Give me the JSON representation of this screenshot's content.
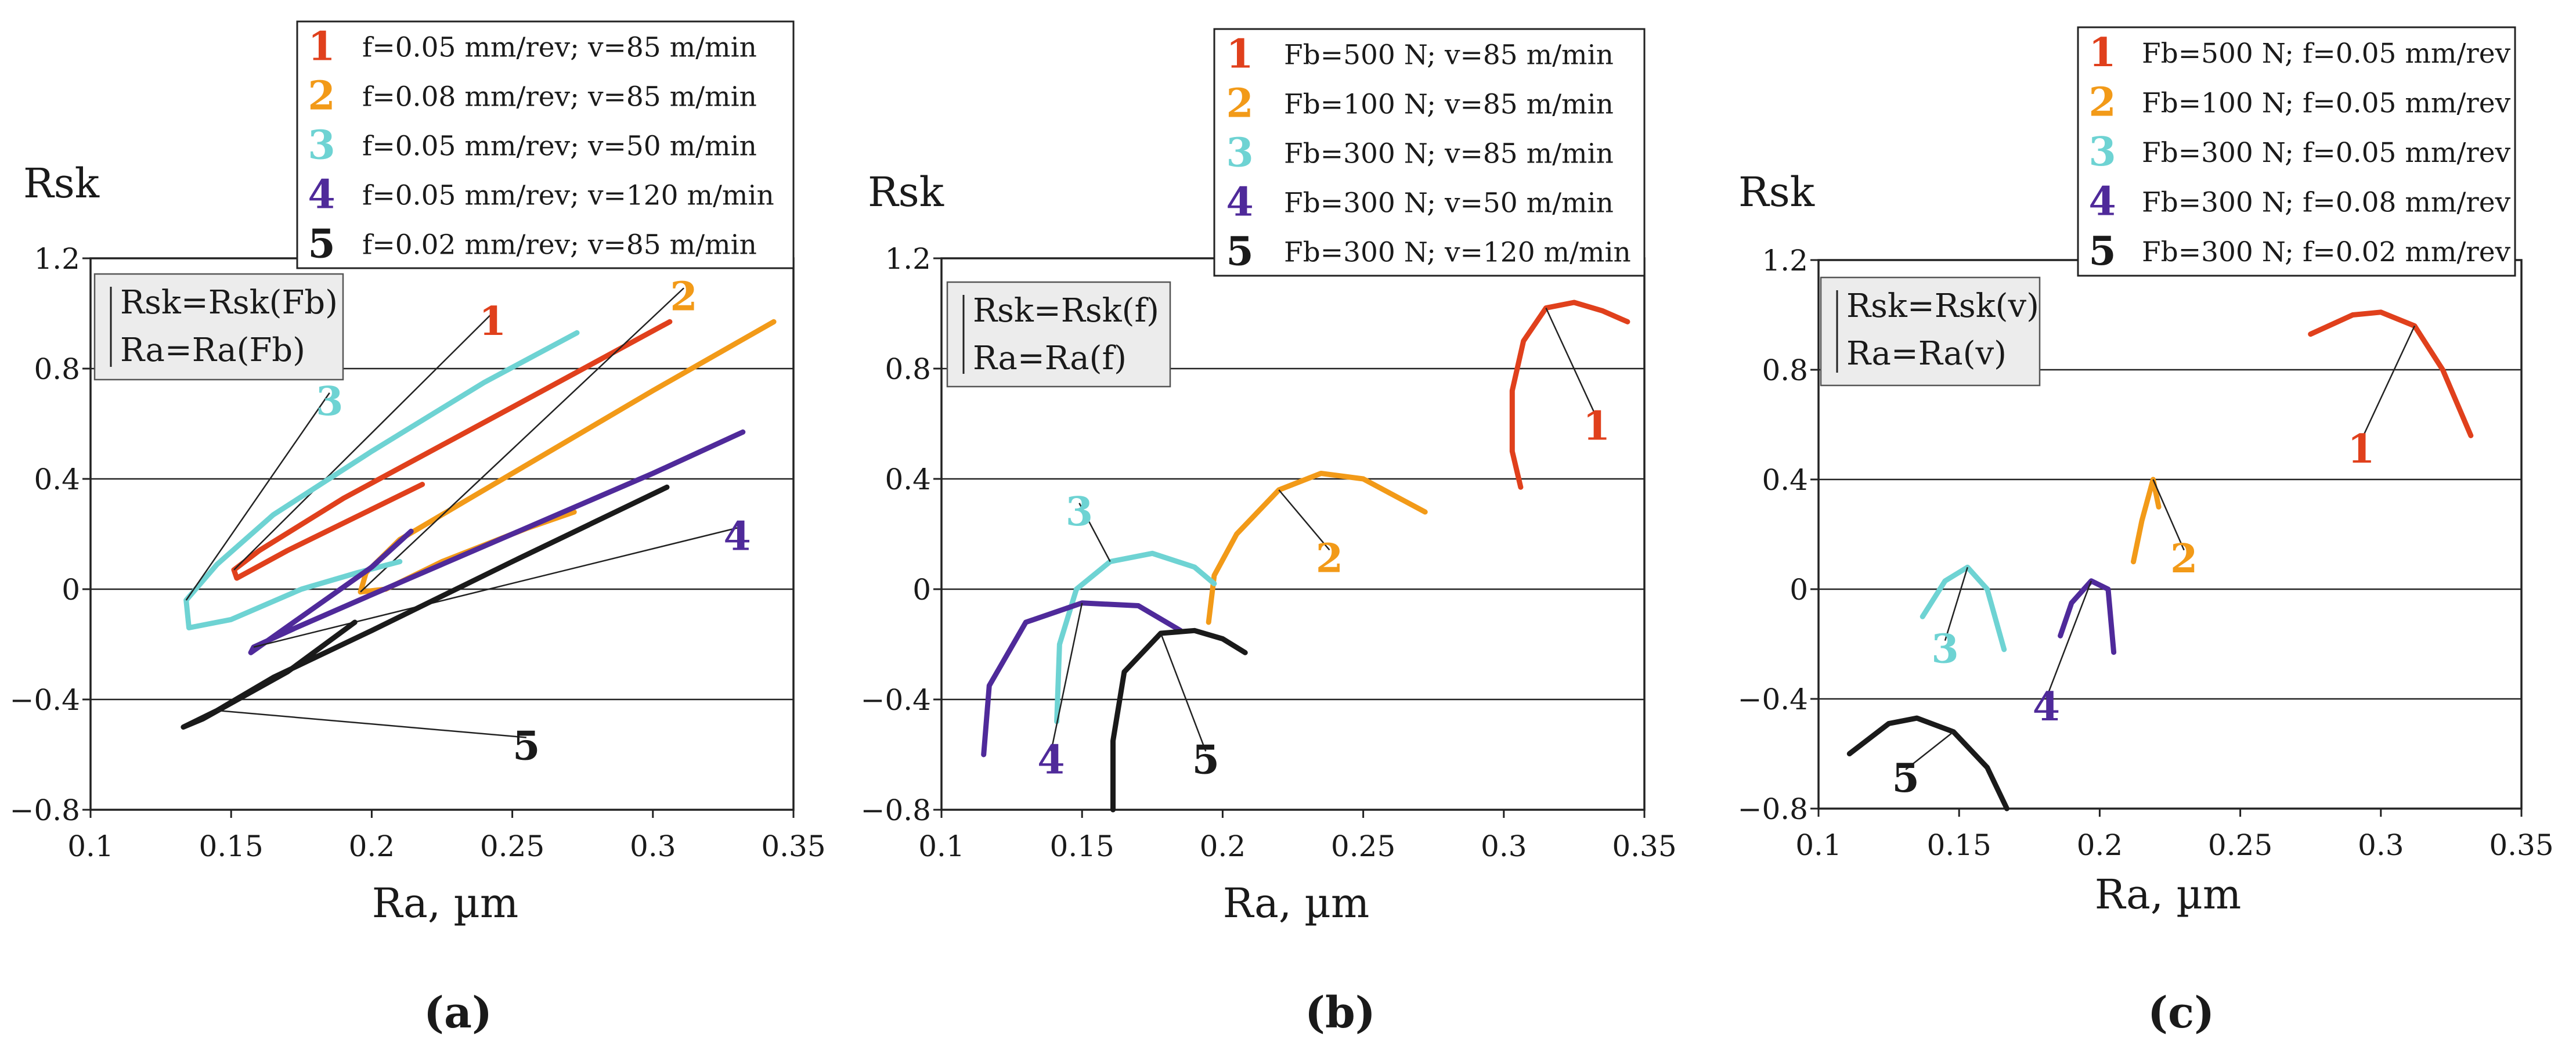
{
  "figure": {
    "panel_labels": [
      "(a)",
      "(b)",
      "(c)"
    ]
  },
  "colors": {
    "s1": "#e0401c",
    "s2": "#f29a18",
    "s3": "#6ed3d3",
    "s4": "#4f2a9a",
    "s5": "#1a1a1a",
    "box_fill": "#ececec",
    "grid": "#222222"
  },
  "chart_data": [
    {
      "type": "line",
      "panel": "(a)",
      "ylabel": "Rsk",
      "xlabel": "Ra, µm",
      "xlim": [
        0.1,
        0.35
      ],
      "ylim": [
        -0.8,
        1.2
      ],
      "xticks": [
        "0.1",
        "0.15",
        "0.2",
        "0.25",
        "0.3",
        "0.35"
      ],
      "yticks": [
        "1.2",
        "0.8",
        "0.4",
        "0",
        "−0.4",
        "−0.8"
      ],
      "note": [
        "Rsk=Rsk(Fb)",
        "Ra=Ra(Fb)"
      ],
      "legend": [
        {
          "num": "1",
          "label": "f=0.05 mm/rev; v=85 m/min"
        },
        {
          "num": "2",
          "label": "f=0.08 mm/rev; v=85 m/min"
        },
        {
          "num": "3",
          "label": "f=0.05 mm/rev; v=50 m/min"
        },
        {
          "num": "4",
          "label": "f=0.05 mm/rev; v=120 m/min"
        },
        {
          "num": "5",
          "label": "f=0.02 mm/rev; v=85 m/min"
        }
      ],
      "series": [
        {
          "name": "1",
          "color_key": "s1",
          "tag": [
            0.243,
            0.96
          ],
          "points": [
            [
              0.306,
              0.97
            ],
            [
              0.25,
              0.66
            ],
            [
              0.19,
              0.33
            ],
            [
              0.16,
              0.14
            ],
            [
              0.151,
              0.07
            ],
            [
              0.152,
              0.04
            ],
            [
              0.17,
              0.14
            ],
            [
              0.2,
              0.29
            ],
            [
              0.218,
              0.38
            ]
          ]
        },
        {
          "name": "2",
          "color_key": "s2",
          "tag": [
            0.311,
            1.05
          ],
          "points": [
            [
              0.343,
              0.97
            ],
            [
              0.3,
              0.72
            ],
            [
              0.25,
              0.42
            ],
            [
              0.21,
              0.18
            ],
            [
              0.198,
              0.06
            ],
            [
              0.196,
              -0.01
            ],
            [
              0.205,
              0.0
            ],
            [
              0.225,
              0.1
            ],
            [
              0.255,
              0.22
            ],
            [
              0.272,
              0.28
            ]
          ]
        },
        {
          "name": "3",
          "color_key": "s3",
          "tag": [
            0.185,
            0.67
          ],
          "points": [
            [
              0.273,
              0.93
            ],
            [
              0.24,
              0.75
            ],
            [
              0.2,
              0.5
            ],
            [
              0.165,
              0.27
            ],
            [
              0.145,
              0.09
            ],
            [
              0.134,
              -0.04
            ],
            [
              0.135,
              -0.14
            ],
            [
              0.15,
              -0.11
            ],
            [
              0.175,
              0.0
            ],
            [
              0.195,
              0.06
            ],
            [
              0.21,
              0.1
            ]
          ]
        },
        {
          "name": "4",
          "color_key": "s4",
          "tag": [
            0.33,
            0.18
          ],
          "points": [
            [
              0.332,
              0.57
            ],
            [
              0.3,
              0.42
            ],
            [
              0.25,
              0.2
            ],
            [
              0.2,
              -0.02
            ],
            [
              0.173,
              -0.14
            ],
            [
              0.158,
              -0.21
            ],
            [
              0.157,
              -0.23
            ],
            [
              0.175,
              -0.1
            ],
            [
              0.2,
              0.08
            ],
            [
              0.214,
              0.21
            ]
          ]
        },
        {
          "name": "5",
          "color_key": "s5",
          "tag": [
            0.255,
            -0.58
          ],
          "points": [
            [
              0.305,
              0.37
            ],
            [
              0.25,
              0.1
            ],
            [
              0.2,
              -0.15
            ],
            [
              0.165,
              -0.32
            ],
            [
              0.145,
              -0.44
            ],
            [
              0.133,
              -0.5
            ],
            [
              0.14,
              -0.47
            ],
            [
              0.17,
              -0.3
            ],
            [
              0.194,
              -0.12
            ]
          ]
        }
      ]
    },
    {
      "type": "line",
      "panel": "(b)",
      "ylabel": "Rsk",
      "xlabel": "Ra, µm",
      "xlim": [
        0.1,
        0.35
      ],
      "ylim": [
        -0.8,
        1.2
      ],
      "xticks": [
        "0.1",
        "0.15",
        "0.2",
        "0.25",
        "0.3",
        "0.35"
      ],
      "yticks": [
        "1.2",
        "0.8",
        "0.4",
        "0",
        "−0.4",
        "−0.8"
      ],
      "note": [
        "Rsk=Rsk(f)",
        "Ra=Ra(f)"
      ],
      "legend": [
        {
          "num": "1",
          "label": "Fb=500 N; v=85 m/min"
        },
        {
          "num": "2",
          "label": "Fb=100 N; v=85 m/min"
        },
        {
          "num": "3",
          "label": "Fb=300 N; v=85 m/min"
        },
        {
          "num": "4",
          "label": "Fb=300 N; v=50 m/min"
        },
        {
          "num": "5",
          "label": "Fb=300 N; v=120 m/min"
        }
      ],
      "series": [
        {
          "name": "1",
          "color_key": "s1",
          "tag": [
            0.333,
            0.58
          ],
          "points": [
            [
              0.306,
              0.37
            ],
            [
              0.303,
              0.5
            ],
            [
              0.303,
              0.72
            ],
            [
              0.307,
              0.9
            ],
            [
              0.315,
              1.02
            ],
            [
              0.325,
              1.04
            ],
            [
              0.335,
              1.01
            ],
            [
              0.344,
              0.97
            ]
          ]
        },
        {
          "name": "2",
          "color_key": "s2",
          "tag": [
            0.238,
            0.1
          ],
          "points": [
            [
              0.195,
              -0.12
            ],
            [
              0.197,
              0.05
            ],
            [
              0.205,
              0.2
            ],
            [
              0.22,
              0.36
            ],
            [
              0.235,
              0.42
            ],
            [
              0.25,
              0.4
            ],
            [
              0.272,
              0.28
            ]
          ]
        },
        {
          "name": "3",
          "color_key": "s3",
          "tag": [
            0.149,
            0.27
          ],
          "points": [
            [
              0.141,
              -0.48
            ],
            [
              0.142,
              -0.2
            ],
            [
              0.148,
              0.0
            ],
            [
              0.16,
              0.1
            ],
            [
              0.175,
              0.13
            ],
            [
              0.19,
              0.08
            ],
            [
              0.197,
              0.02
            ]
          ]
        },
        {
          "name": "4",
          "color_key": "s4",
          "tag": [
            0.139,
            -0.63
          ],
          "points": [
            [
              0.115,
              -0.6
            ],
            [
              0.117,
              -0.35
            ],
            [
              0.13,
              -0.12
            ],
            [
              0.15,
              -0.05
            ],
            [
              0.17,
              -0.06
            ],
            [
              0.185,
              -0.15
            ]
          ]
        },
        {
          "name": "5",
          "color_key": "s5",
          "tag": [
            0.194,
            -0.63
          ],
          "points": [
            [
              0.161,
              -0.8
            ],
            [
              0.161,
              -0.55
            ],
            [
              0.165,
              -0.3
            ],
            [
              0.178,
              -0.16
            ],
            [
              0.19,
              -0.15
            ],
            [
              0.2,
              -0.18
            ],
            [
              0.208,
              -0.23
            ]
          ]
        }
      ]
    },
    {
      "type": "line",
      "panel": "(c)",
      "ylabel": "Rsk",
      "xlabel": "Ra, µm",
      "xlim": [
        0.1,
        0.35
      ],
      "ylim": [
        -0.8,
        1.2
      ],
      "xticks": [
        "0.1",
        "0.15",
        "0.2",
        "0.25",
        "0.3",
        "0.35"
      ],
      "yticks": [
        "1.2",
        "0.8",
        "0.4",
        "0",
        "−0.4",
        "−0.8"
      ],
      "note": [
        "Rsk=Rsk(v)",
        "Ra=Ra(v)"
      ],
      "legend": [
        {
          "num": "1",
          "label": "Fb=500 N; f=0.05 mm/rev"
        },
        {
          "num": "2",
          "label": "Fb=100 N; f=0.05 mm/rev"
        },
        {
          "num": "3",
          "label": "Fb=300 N; f=0.05 mm/rev"
        },
        {
          "num": "4",
          "label": "Fb=300 N; f=0.08 mm/rev"
        },
        {
          "num": "5",
          "label": "Fb=300 N; f=0.02 mm/rev"
        }
      ],
      "series": [
        {
          "name": "1",
          "color_key": "s1",
          "tag": [
            0.293,
            0.5
          ],
          "points": [
            [
              0.275,
              0.93
            ],
            [
              0.29,
              1.0
            ],
            [
              0.3,
              1.01
            ],
            [
              0.312,
              0.96
            ],
            [
              0.322,
              0.8
            ],
            [
              0.332,
              0.56
            ]
          ]
        },
        {
          "name": "2",
          "color_key": "s2",
          "tag": [
            0.23,
            0.1
          ],
          "points": [
            [
              0.212,
              0.1
            ],
            [
              0.215,
              0.25
            ],
            [
              0.219,
              0.4
            ],
            [
              0.221,
              0.3
            ]
          ]
        },
        {
          "name": "3",
          "color_key": "s3",
          "tag": [
            0.145,
            -0.23
          ],
          "points": [
            [
              0.137,
              -0.1
            ],
            [
              0.145,
              0.03
            ],
            [
              0.153,
              0.08
            ],
            [
              0.16,
              0.0
            ],
            [
              0.166,
              -0.22
            ]
          ]
        },
        {
          "name": "4",
          "color_key": "s4",
          "tag": [
            0.181,
            -0.44
          ],
          "points": [
            [
              0.186,
              -0.17
            ],
            [
              0.19,
              -0.05
            ],
            [
              0.197,
              0.03
            ],
            [
              0.203,
              0.0
            ],
            [
              0.205,
              -0.23
            ]
          ]
        },
        {
          "name": "5",
          "color_key": "s5",
          "tag": [
            0.131,
            -0.7
          ],
          "points": [
            [
              0.111,
              -0.6
            ],
            [
              0.125,
              -0.49
            ],
            [
              0.135,
              -0.47
            ],
            [
              0.148,
              -0.52
            ],
            [
              0.16,
              -0.65
            ],
            [
              0.167,
              -0.8
            ]
          ]
        }
      ]
    }
  ]
}
